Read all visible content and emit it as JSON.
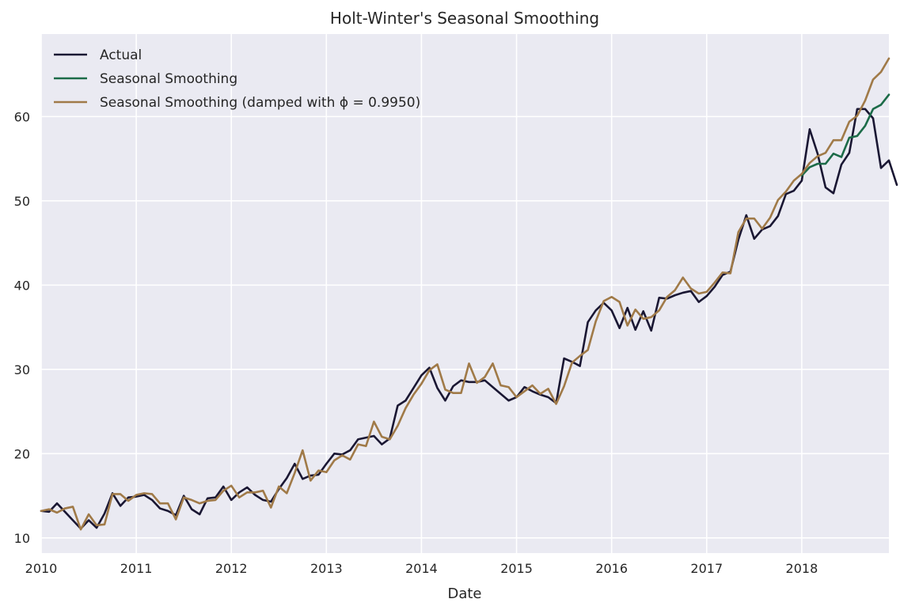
{
  "chart_data": {
    "type": "line",
    "title": "Holt-Winter's Seasonal Smoothing",
    "xlabel": "Date",
    "ylabel": "",
    "x_start": "2010-01",
    "x_frequency": "monthly",
    "xlim": [
      "2010-01",
      "2018-12"
    ],
    "ylim": [
      8.2,
      69.8
    ],
    "x_ticks": [
      {
        "label": "2010",
        "date": "2010-01"
      },
      {
        "label": "2011",
        "date": "2011-01"
      },
      {
        "label": "2012",
        "date": "2012-01"
      },
      {
        "label": "2013",
        "date": "2013-01"
      },
      {
        "label": "2014",
        "date": "2014-01"
      },
      {
        "label": "2015",
        "date": "2015-01"
      },
      {
        "label": "2016",
        "date": "2016-01"
      },
      {
        "label": "2017",
        "date": "2017-01"
      },
      {
        "label": "2018",
        "date": "2018-01"
      }
    ],
    "y_ticks": [
      10,
      20,
      30,
      40,
      50,
      60
    ],
    "grid": true,
    "background": "#eaeaf2",
    "legend": {
      "position": "top-left",
      "entries": [
        "Actual",
        "Seasonal Smoothing",
        "Seasonal Smoothing (damped with ϕ = 0.9950)"
      ]
    },
    "series": [
      {
        "name": "Actual",
        "color": "#1a1733",
        "start": "2010-01",
        "values": [
          13.2,
          13.1,
          14.1,
          13.1,
          12.1,
          11.1,
          12.1,
          11.2,
          12.9,
          15.3,
          13.8,
          14.8,
          14.9,
          15.1,
          14.5,
          13.5,
          13.2,
          12.7,
          15.0,
          13.4,
          12.8,
          14.7,
          14.8,
          16.1,
          14.5,
          15.4,
          16.0,
          15.1,
          14.5,
          14.3,
          15.8,
          17.1,
          18.8,
          17.0,
          17.4,
          17.5,
          18.8,
          20.0,
          19.9,
          20.4,
          21.7,
          21.9,
          22.1,
          21.1,
          21.8,
          25.7,
          26.3,
          27.8,
          29.3,
          30.2,
          27.8,
          26.3,
          28.0,
          28.7,
          28.5,
          28.5,
          28.7,
          27.9,
          27.1,
          26.3,
          26.7,
          27.9,
          27.4,
          27.0,
          26.7,
          26.0,
          31.3,
          30.9,
          30.4,
          35.6,
          37.0,
          37.9,
          37.0,
          34.9,
          37.3,
          34.7,
          36.9,
          34.6,
          38.5,
          38.4,
          38.8,
          39.1,
          39.3,
          38.0,
          38.7,
          39.8,
          41.2,
          41.6,
          45.4,
          48.3,
          45.5,
          46.6,
          47.0,
          48.2,
          50.8,
          51.2,
          52.4,
          58.5,
          55.6,
          51.6,
          50.9,
          54.3,
          55.7,
          60.9,
          60.9,
          59.8,
          53.9,
          54.8,
          51.9
        ]
      },
      {
        "name": "Seasonal Smoothing",
        "color": "#1c6b48",
        "start": "2018-01",
        "values": [
          53.0,
          54.0,
          54.4,
          54.4,
          55.6,
          55.2,
          57.5,
          57.7,
          58.9,
          60.9,
          61.4,
          62.6
        ]
      },
      {
        "name": "Seasonal Smoothing (damped with ϕ = 0.9950)",
        "color": "#a07a48",
        "start": "2010-01",
        "values": [
          13.2,
          13.4,
          13.0,
          13.5,
          13.7,
          11.0,
          12.8,
          11.5,
          11.6,
          15.2,
          15.2,
          14.4,
          15.1,
          15.3,
          15.2,
          14.1,
          14.1,
          12.2,
          14.8,
          14.5,
          14.1,
          14.4,
          14.5,
          15.6,
          16.2,
          14.8,
          15.4,
          15.4,
          15.6,
          13.6,
          16.1,
          15.3,
          17.7,
          20.4,
          16.8,
          18.0,
          17.8,
          19.2,
          19.8,
          19.3,
          21.1,
          20.9,
          23.8,
          22.0,
          21.7,
          23.3,
          25.4,
          27.0,
          28.3,
          29.9,
          30.6,
          27.6,
          27.2,
          27.2,
          30.7,
          28.4,
          29.1,
          30.7,
          28.1,
          27.9,
          26.7,
          27.4,
          28.1,
          27.1,
          27.7,
          25.9,
          28.0,
          30.8,
          31.6,
          32.3,
          35.7,
          38.1,
          38.6,
          38.0,
          35.2,
          37.1,
          36.0,
          36.2,
          37.0,
          38.6,
          39.4,
          40.9,
          39.6,
          39.0,
          39.2,
          40.3,
          41.5,
          41.4,
          46.3,
          47.9,
          47.9,
          46.7,
          48.0,
          50.1,
          51.1,
          52.4,
          53.2,
          54.5,
          55.3,
          55.7,
          57.2,
          57.2,
          59.4,
          60.1,
          61.9,
          64.4,
          65.3,
          66.9
        ]
      }
    ]
  }
}
